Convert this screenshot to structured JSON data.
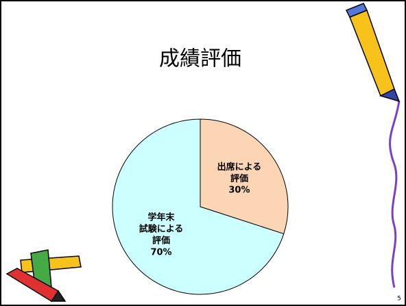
{
  "chart_data": {
    "type": "pie",
    "title": "成績評価",
    "categories": [
      "出席による\n評価",
      "学年末\n試験による\n評価"
    ],
    "values": [
      30,
      70
    ],
    "value_labels": [
      "30%",
      "70%"
    ],
    "colors": [
      "#fcd5b5",
      "#ccffff"
    ]
  },
  "page_number": "5"
}
